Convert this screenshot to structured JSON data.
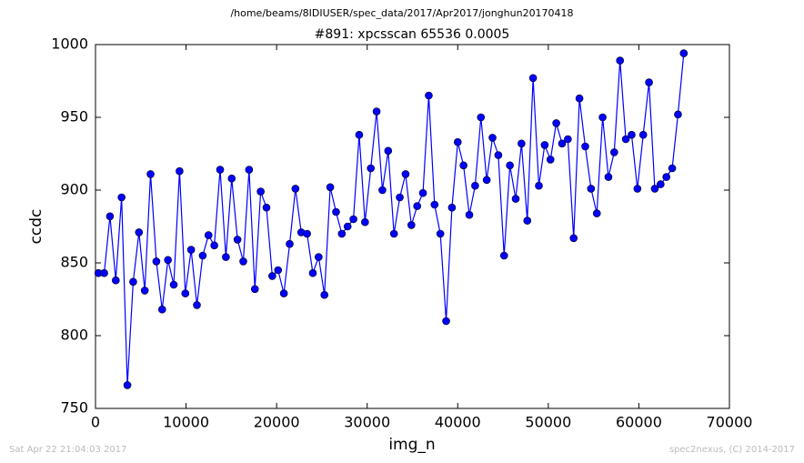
{
  "chart_data": {
    "type": "line",
    "suptitle": "/home/beams/8IDIUSER/spec_data/2017/Apr2017/jonghun20170418",
    "title": "#891: xpcsscan 65536 0.0005",
    "xlabel": "img_n",
    "ylabel": "ccdc",
    "footer_left": "Sat Apr 22 21:04:03 2017",
    "footer_right": "spec2nexus, (C) 2014-2017",
    "xlim": [
      0,
      70000
    ],
    "xticks": [
      0,
      10000,
      20000,
      30000,
      40000,
      50000,
      60000,
      70000
    ],
    "ylim": [
      750,
      1000
    ],
    "yticks": [
      750,
      800,
      850,
      900,
      950,
      1000
    ],
    "grid": false,
    "x": [
      320,
      960,
      1600,
      2240,
      2880,
      3520,
      4160,
      4800,
      5440,
      6080,
      6720,
      7360,
      8000,
      8640,
      9280,
      9920,
      10560,
      11200,
      11840,
      12480,
      13120,
      13760,
      14400,
      15040,
      15680,
      16320,
      16960,
      17600,
      18240,
      18880,
      19520,
      20160,
      20800,
      21440,
      22080,
      22720,
      23360,
      24000,
      24640,
      25280,
      25920,
      26560,
      27200,
      27840,
      28480,
      29120,
      29760,
      30400,
      31040,
      31680,
      32320,
      32960,
      33600,
      34240,
      34880,
      35520,
      36160,
      36800,
      37440,
      38080,
      38720,
      39360,
      40000,
      40640,
      41280,
      41920,
      42560,
      43200,
      43840,
      44480,
      45120,
      45760,
      46400,
      47040,
      47680,
      48320,
      48960,
      49600,
      50240,
      50880,
      51520,
      52160,
      52800,
      53440,
      54080,
      54720,
      55360,
      56000,
      56640,
      57280,
      57920,
      58560,
      59200,
      59840,
      60480,
      61120,
      61760,
      62400,
      63040,
      63680,
      64320,
      64960
    ],
    "series": [
      {
        "color": "#0000ff",
        "values": [
          843,
          843,
          882,
          838,
          895,
          766,
          837,
          871,
          831,
          911,
          851,
          818,
          852,
          835,
          913,
          829,
          859,
          821,
          855,
          869,
          862,
          914,
          854,
          908,
          866,
          851,
          914,
          832,
          899,
          888,
          841,
          845,
          829,
          863,
          901,
          871,
          870,
          843,
          854,
          828,
          902,
          885,
          870,
          875,
          880,
          938,
          878,
          915,
          954,
          900,
          927,
          870,
          895,
          911,
          876,
          889,
          898,
          965,
          890,
          870,
          810,
          888,
          933,
          917,
          883,
          903,
          950,
          907,
          936,
          924,
          855,
          917,
          894,
          932,
          879,
          977,
          903,
          931,
          921,
          946,
          932,
          935,
          867,
          963,
          930,
          901,
          884,
          950,
          909,
          926,
          989,
          935,
          938,
          901,
          938,
          974,
          901,
          904,
          909,
          915,
          952,
          994
        ]
      }
    ]
  }
}
